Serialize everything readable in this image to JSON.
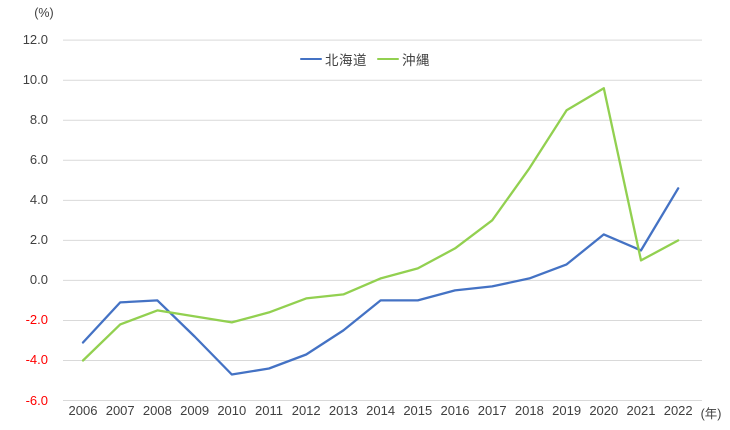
{
  "chart_data": {
    "type": "line",
    "title": "",
    "unit_label": "(%)",
    "x_axis_suffix": "(年)",
    "xlabel": "",
    "ylabel": "(%)",
    "categories": [
      2006,
      2007,
      2008,
      2009,
      2010,
      2011,
      2012,
      2013,
      2014,
      2015,
      2016,
      2017,
      2018,
      2019,
      2020,
      2021,
      2022
    ],
    "series": [
      {
        "name": "北海道",
        "color": "#4472C4",
        "values": [
          -3.1,
          -1.1,
          -1.0,
          -2.8,
          -4.7,
          -4.4,
          -3.7,
          -2.5,
          -1.0,
          -1.0,
          -0.5,
          -0.3,
          0.1,
          0.8,
          2.3,
          1.5,
          4.6
        ]
      },
      {
        "name": "沖縄",
        "color": "#92D050",
        "values": [
          -4.0,
          -2.2,
          -1.5,
          -1.8,
          -2.1,
          -1.6,
          -0.9,
          -0.7,
          0.1,
          0.6,
          1.6,
          3.0,
          5.6,
          8.5,
          9.6,
          1.0,
          2.0
        ]
      }
    ],
    "ylim": [
      -6.0,
      12.0
    ],
    "ytick_step": 2.0,
    "ytick_labels": [
      "12.0",
      "10.0",
      "8.0",
      "6.0",
      "4.0",
      "2.0",
      "0.0",
      "-2.0",
      "-4.0",
      "-6.0"
    ],
    "grid": "horizontal",
    "legend_position": "top-center",
    "colors": {
      "tick_text": "#404040",
      "negative_tick_text": "#FF0000",
      "gridline": "#D9D9D9",
      "background": "#FFFFFF"
    }
  }
}
